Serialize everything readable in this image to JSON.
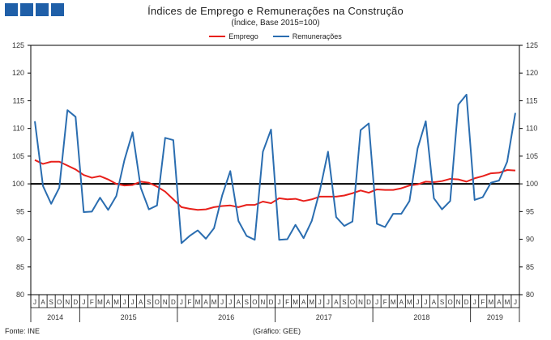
{
  "header": {
    "title": "Índices de Emprego e Remunerações na Construção",
    "subtitle": "(Índice, Base 2015=100)"
  },
  "footer": {
    "source": "Fonte: INE",
    "credit": "(Gráfico: GEE)"
  },
  "colors": {
    "logo": "#1f5fa8",
    "emprego": "#e8201b",
    "remuneracoes": "#2a6db0",
    "baseline": "#000000"
  },
  "chart_data": {
    "type": "line",
    "title": "Índices de Emprego e Remunerações na Construção",
    "subtitle": "(Índice, Base 2015=100)",
    "x": [
      "2014-07",
      "2014-08",
      "2014-09",
      "2014-10",
      "2014-11",
      "2014-12",
      "2015-01",
      "2015-02",
      "2015-03",
      "2015-04",
      "2015-05",
      "2015-06",
      "2015-07",
      "2015-08",
      "2015-09",
      "2015-10",
      "2015-11",
      "2015-12",
      "2016-01",
      "2016-02",
      "2016-03",
      "2016-04",
      "2016-05",
      "2016-06",
      "2016-07",
      "2016-08",
      "2016-09",
      "2016-10",
      "2016-11",
      "2016-12",
      "2017-01",
      "2017-02",
      "2017-03",
      "2017-04",
      "2017-05",
      "2017-06",
      "2017-07",
      "2017-08",
      "2017-09",
      "2017-10",
      "2017-11",
      "2017-12",
      "2018-01",
      "2018-02",
      "2018-03",
      "2018-04",
      "2018-05",
      "2018-06",
      "2018-07",
      "2018-08",
      "2018-09",
      "2018-10",
      "2018-11",
      "2018-12",
      "2019-01",
      "2019-02",
      "2019-03",
      "2019-04",
      "2019-05",
      "2019-06"
    ],
    "month_labels": [
      "J",
      "A",
      "S",
      "O",
      "N",
      "D",
      "J",
      "F",
      "M",
      "A",
      "M",
      "J",
      "J",
      "A",
      "S",
      "O",
      "N",
      "D",
      "J",
      "F",
      "M",
      "A",
      "M",
      "J",
      "J",
      "A",
      "S",
      "O",
      "N",
      "D",
      "J",
      "F",
      "M",
      "A",
      "M",
      "J",
      "J",
      "A",
      "S",
      "O",
      "N",
      "D",
      "J",
      "F",
      "M",
      "A",
      "M",
      "J",
      "J",
      "A",
      "S",
      "O",
      "N",
      "D",
      "J",
      "F",
      "M",
      "A",
      "M",
      "J"
    ],
    "years": [
      {
        "label": "2014",
        "start": 0,
        "end": 5
      },
      {
        "label": "2015",
        "start": 6,
        "end": 17
      },
      {
        "label": "2016",
        "start": 18,
        "end": 29
      },
      {
        "label": "2017",
        "start": 30,
        "end": 41
      },
      {
        "label": "2018",
        "start": 42,
        "end": 53
      },
      {
        "label": "2019",
        "start": 54,
        "end": 59
      }
    ],
    "series": [
      {
        "name": "Emprego",
        "color": "#e8201b",
        "values": [
          104.3,
          103.6,
          104.0,
          104.0,
          103.3,
          102.6,
          101.6,
          101.1,
          101.4,
          100.8,
          100.0,
          99.7,
          99.8,
          100.4,
          100.2,
          99.5,
          98.6,
          97.2,
          95.8,
          95.5,
          95.3,
          95.4,
          95.8,
          96.0,
          96.1,
          95.8,
          96.2,
          96.2,
          96.8,
          96.5,
          97.4,
          97.2,
          97.3,
          96.9,
          97.2,
          97.7,
          97.7,
          97.7,
          97.9,
          98.3,
          98.8,
          98.4,
          99.0,
          98.9,
          98.9,
          99.2,
          99.7,
          99.9,
          100.4,
          100.3,
          100.5,
          100.9,
          100.8,
          100.4,
          101.0,
          101.4,
          101.9,
          102.0,
          102.5,
          102.4
        ]
      },
      {
        "name": "Remunerações",
        "color": "#2a6db0",
        "values": [
          111.3,
          99.6,
          96.4,
          99.3,
          113.3,
          112.1,
          94.9,
          95.0,
          97.5,
          95.3,
          97.8,
          104.3,
          109.3,
          99.3,
          95.4,
          96.1,
          108.3,
          107.9,
          89.3,
          90.6,
          91.6,
          90.1,
          92.0,
          97.9,
          102.3,
          93.3,
          90.6,
          89.9,
          105.8,
          109.8,
          89.9,
          90.0,
          92.6,
          90.2,
          93.3,
          98.8,
          105.8,
          94.0,
          92.4,
          93.2,
          109.7,
          110.9,
          92.8,
          92.2,
          94.6,
          94.6,
          96.9,
          106.4,
          111.3,
          97.4,
          95.4,
          96.9,
          114.3,
          116.1,
          97.1,
          97.6,
          100.2,
          100.6,
          104.0,
          112.8
        ]
      }
    ],
    "ylim": [
      80,
      125
    ],
    "yticks": [
      80,
      85,
      90,
      95,
      100,
      105,
      110,
      115,
      120,
      125
    ],
    "reference_line": 100,
    "legend_position": "top-center",
    "grid": false
  }
}
